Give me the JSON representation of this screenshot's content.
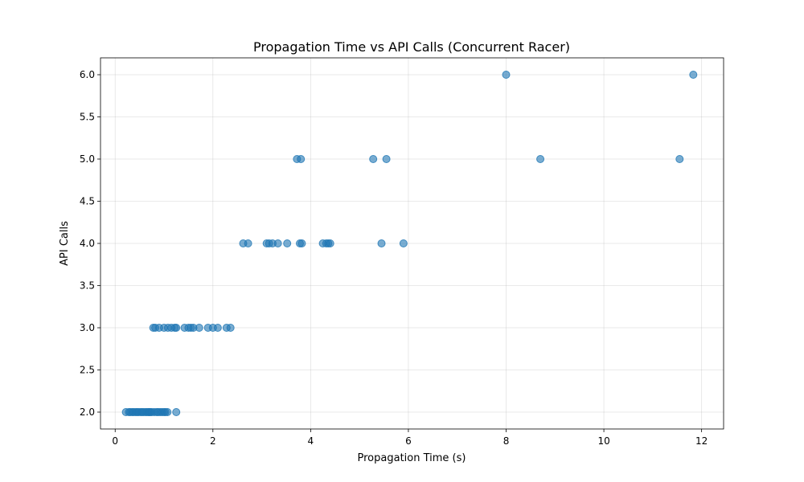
{
  "chart_data": {
    "type": "scatter",
    "title": "Propagation Time vs API Calls (Concurrent Racer)",
    "xlabel": "Propagation Time (s)",
    "ylabel": "API Calls",
    "xlim": [
      -0.3,
      12.45
    ],
    "ylim": [
      1.8,
      6.2
    ],
    "xticks": [
      0,
      2,
      4,
      6,
      8,
      10,
      12
    ],
    "yticks": [
      2.0,
      2.5,
      3.0,
      3.5,
      4.0,
      4.5,
      5.0,
      5.5,
      6.0
    ],
    "xtick_labels": [
      "0",
      "2",
      "4",
      "6",
      "8",
      "10",
      "12"
    ],
    "ytick_labels": [
      "2.0",
      "2.5",
      "3.0",
      "3.5",
      "4.0",
      "4.5",
      "5.0",
      "5.5",
      "6.0"
    ],
    "grid": true,
    "color": "#1f77b4",
    "points": [
      {
        "x": 0.22,
        "y": 2
      },
      {
        "x": 0.28,
        "y": 2
      },
      {
        "x": 0.31,
        "y": 2
      },
      {
        "x": 0.35,
        "y": 2
      },
      {
        "x": 0.38,
        "y": 2
      },
      {
        "x": 0.42,
        "y": 2
      },
      {
        "x": 0.45,
        "y": 2
      },
      {
        "x": 0.48,
        "y": 2
      },
      {
        "x": 0.52,
        "y": 2
      },
      {
        "x": 0.55,
        "y": 2
      },
      {
        "x": 0.58,
        "y": 2
      },
      {
        "x": 0.62,
        "y": 2
      },
      {
        "x": 0.65,
        "y": 2
      },
      {
        "x": 0.68,
        "y": 2
      },
      {
        "x": 0.7,
        "y": 2
      },
      {
        "x": 0.72,
        "y": 2
      },
      {
        "x": 0.75,
        "y": 2
      },
      {
        "x": 0.8,
        "y": 2
      },
      {
        "x": 0.85,
        "y": 2
      },
      {
        "x": 0.88,
        "y": 2
      },
      {
        "x": 0.92,
        "y": 2
      },
      {
        "x": 0.96,
        "y": 2
      },
      {
        "x": 1.0,
        "y": 2
      },
      {
        "x": 1.03,
        "y": 2
      },
      {
        "x": 1.07,
        "y": 2
      },
      {
        "x": 1.25,
        "y": 2
      },
      {
        "x": 0.78,
        "y": 3
      },
      {
        "x": 0.82,
        "y": 3
      },
      {
        "x": 0.9,
        "y": 3
      },
      {
        "x": 1.0,
        "y": 3
      },
      {
        "x": 1.08,
        "y": 3
      },
      {
        "x": 1.15,
        "y": 3
      },
      {
        "x": 1.22,
        "y": 3
      },
      {
        "x": 1.25,
        "y": 3
      },
      {
        "x": 1.42,
        "y": 3
      },
      {
        "x": 1.5,
        "y": 3
      },
      {
        "x": 1.55,
        "y": 3
      },
      {
        "x": 1.6,
        "y": 3
      },
      {
        "x": 1.72,
        "y": 3
      },
      {
        "x": 1.9,
        "y": 3
      },
      {
        "x": 2.0,
        "y": 3
      },
      {
        "x": 2.1,
        "y": 3
      },
      {
        "x": 2.28,
        "y": 3
      },
      {
        "x": 2.36,
        "y": 3
      },
      {
        "x": 2.62,
        "y": 4
      },
      {
        "x": 2.72,
        "y": 4
      },
      {
        "x": 3.1,
        "y": 4
      },
      {
        "x": 3.15,
        "y": 4
      },
      {
        "x": 3.22,
        "y": 4
      },
      {
        "x": 3.33,
        "y": 4
      },
      {
        "x": 3.52,
        "y": 4
      },
      {
        "x": 3.78,
        "y": 4
      },
      {
        "x": 3.82,
        "y": 4
      },
      {
        "x": 4.25,
        "y": 4
      },
      {
        "x": 4.32,
        "y": 4
      },
      {
        "x": 4.36,
        "y": 4
      },
      {
        "x": 4.4,
        "y": 4
      },
      {
        "x": 5.45,
        "y": 4
      },
      {
        "x": 5.9,
        "y": 4
      },
      {
        "x": 3.72,
        "y": 5
      },
      {
        "x": 3.8,
        "y": 5
      },
      {
        "x": 5.28,
        "y": 5
      },
      {
        "x": 5.55,
        "y": 5
      },
      {
        "x": 8.7,
        "y": 5
      },
      {
        "x": 11.55,
        "y": 5
      },
      {
        "x": 8.0,
        "y": 6
      },
      {
        "x": 11.83,
        "y": 6
      }
    ]
  }
}
